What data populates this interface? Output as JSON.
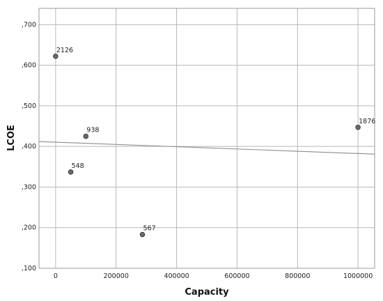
{
  "chart_data": {
    "type": "scatter",
    "xlabel": "Capacity",
    "ylabel": "LCOE",
    "xlim": [
      -55000,
      1055000
    ],
    "ylim": [
      0.1,
      0.74
    ],
    "x_ticks": [
      0,
      200000,
      400000,
      600000,
      800000,
      1000000
    ],
    "x_tick_labels": [
      "0",
      "200000",
      "400000",
      "600000",
      "800000",
      "1000000"
    ],
    "y_ticks": [
      0.1,
      0.2,
      0.3,
      0.4,
      0.5,
      0.6,
      0.7
    ],
    "y_tick_labels": [
      ",100",
      ",200",
      ",300",
      ",400",
      ",500",
      ",600",
      ",700"
    ],
    "grid": true,
    "points": [
      {
        "x": 0,
        "y": 0.622,
        "label": "2126"
      },
      {
        "x": 100000,
        "y": 0.425,
        "label": "938"
      },
      {
        "x": 50000,
        "y": 0.337,
        "label": "548"
      },
      {
        "x": 287000,
        "y": 0.183,
        "label": "567"
      },
      {
        "x": 1000000,
        "y": 0.447,
        "label": "1876"
      }
    ],
    "fit_line": {
      "x": [
        -55000,
        1055000
      ],
      "y": [
        0.412,
        0.381
      ]
    },
    "colors": {
      "point": "#6b6b6b",
      "line": "#8c8c8c",
      "grid": "#b8b8b8"
    }
  }
}
